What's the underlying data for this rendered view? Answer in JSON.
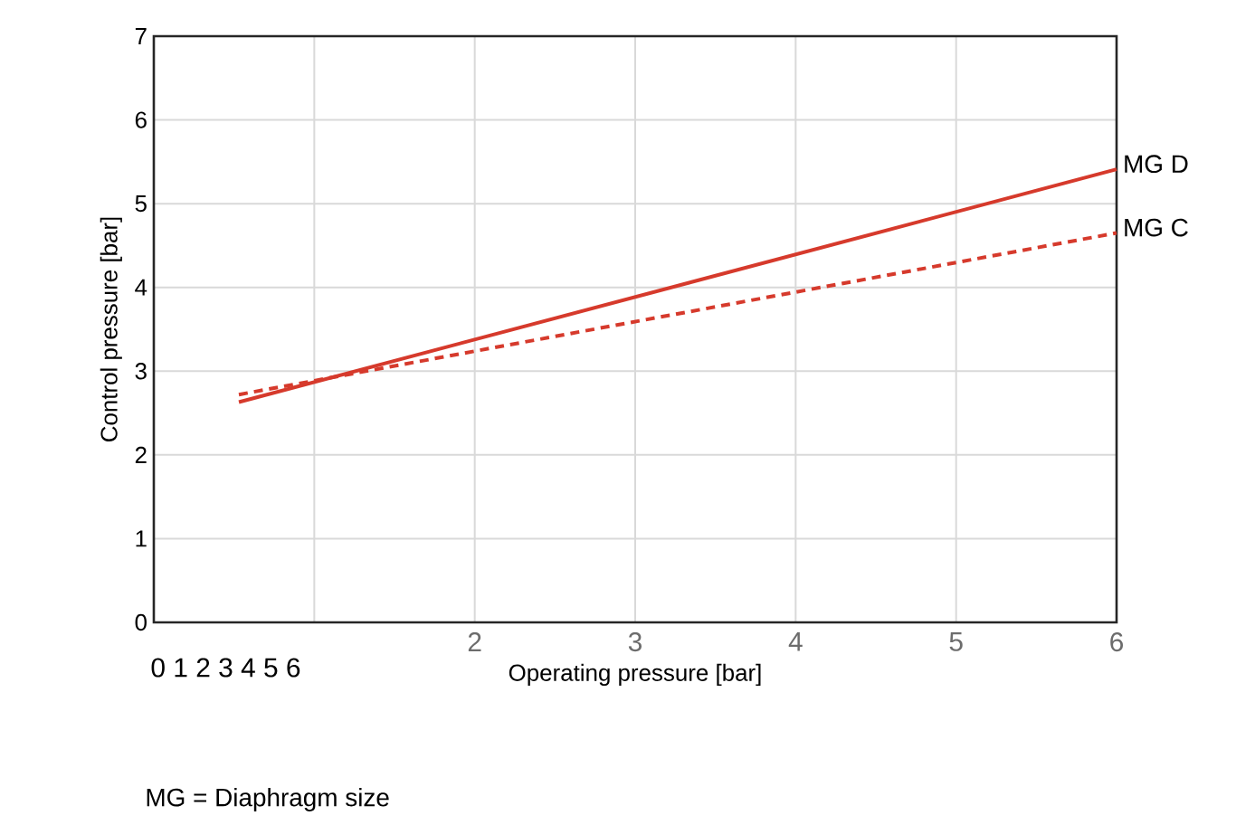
{
  "chart_data": {
    "type": "line",
    "xlabel": "Operating pressure [bar]",
    "ylabel": "Control pressure [bar]",
    "xlim": [
      0,
      6
    ],
    "ylim": [
      0,
      7
    ],
    "xticks": [
      {
        "value": 1,
        "label": null
      },
      2,
      3,
      4,
      5,
      6
    ],
    "yticks": [
      0,
      1,
      2,
      3,
      4,
      5,
      6,
      7
    ],
    "grid": true,
    "legend": false,
    "x": [
      0.53,
      6
    ],
    "series": [
      {
        "name": "MG D",
        "color": "#d63a2c",
        "line_style": "solid",
        "values": [
          2.63,
          5.41
        ]
      },
      {
        "name": "MG C",
        "color": "#d63a2c",
        "line_style": "dashed",
        "values": [
          2.72,
          4.65
        ]
      }
    ],
    "annotations": [
      "0 1 2 3 4 5 6",
      "MG = Diaphragm size"
    ]
  }
}
